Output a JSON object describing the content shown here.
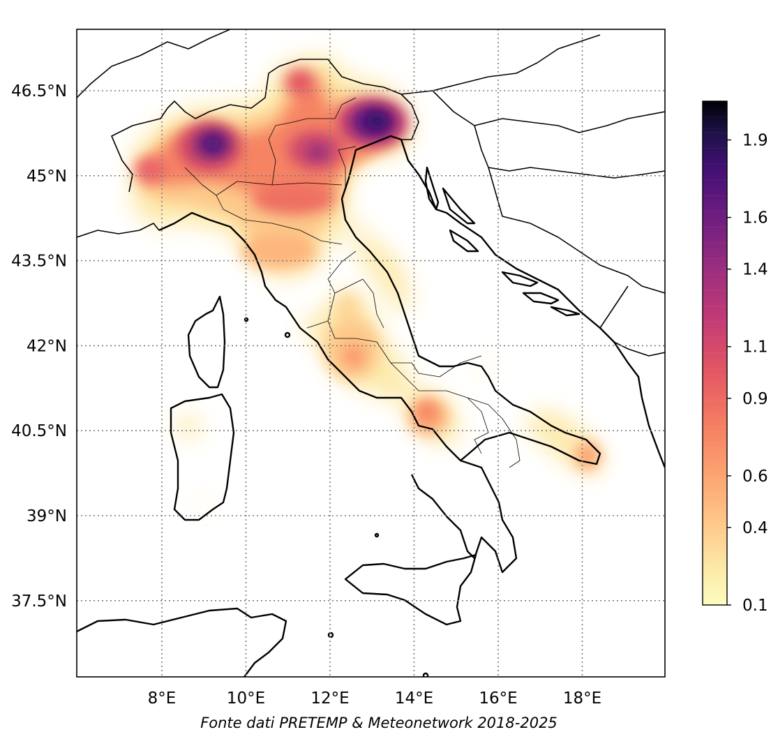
{
  "map": {
    "lon_ticks": [
      "8°E",
      "10°E",
      "12°E",
      "14°E",
      "16°E",
      "18°E"
    ],
    "lat_ticks": [
      "46.5°N",
      "45°N",
      "43.5°N",
      "42°N",
      "40.5°N",
      "39°N",
      "37.5°N"
    ],
    "lon_values": [
      8,
      10,
      12,
      14,
      16,
      18
    ],
    "lat_values": [
      46.5,
      45,
      43.5,
      42,
      40.5,
      39,
      37.5
    ],
    "extent": {
      "lon": [
        6,
        20
      ],
      "lat": [
        36.4,
        47.5
      ]
    },
    "grid": true
  },
  "colorbar": {
    "tick_labels": [
      "1.9",
      "1.6",
      "1.4",
      "1.1",
      "0.9",
      "0.6",
      "0.4",
      "0.1"
    ],
    "tick_values": [
      1.9,
      1.6,
      1.4,
      1.1,
      0.9,
      0.6,
      0.4,
      0.1
    ],
    "range": [
      0.1,
      2.05
    ],
    "colormap": "magma_r",
    "colors": [
      "#fcfdbf",
      "#fde2a1",
      "#feb27a",
      "#fc8961",
      "#e85562",
      "#b73779",
      "#822681",
      "#51127c",
      "#1d1147",
      "#000004"
    ]
  },
  "density": {
    "description_units": "kernel density",
    "hotspots": [
      {
        "lon": 9.2,
        "lat": 45.6,
        "value": 1.6
      },
      {
        "lon": 13.2,
        "lat": 46.0,
        "value": 1.7
      },
      {
        "lon": 11.7,
        "lat": 45.4,
        "value": 1.2
      },
      {
        "lon": 11.3,
        "lat": 46.5,
        "value": 0.9
      },
      {
        "lon": 7.5,
        "lat": 45.2,
        "value": 0.7
      },
      {
        "lon": 10.5,
        "lat": 44.9,
        "value": 0.8
      },
      {
        "lon": 10.3,
        "lat": 43.9,
        "value": 0.5
      },
      {
        "lon": 12.6,
        "lat": 41.9,
        "value": 0.5
      },
      {
        "lon": 14.3,
        "lat": 40.9,
        "value": 0.6
      },
      {
        "lon": 18.1,
        "lat": 40.1,
        "value": 0.6
      }
    ]
  },
  "credit": "Fonte dati PRETEMP & Meteonetwork 2018-2025"
}
